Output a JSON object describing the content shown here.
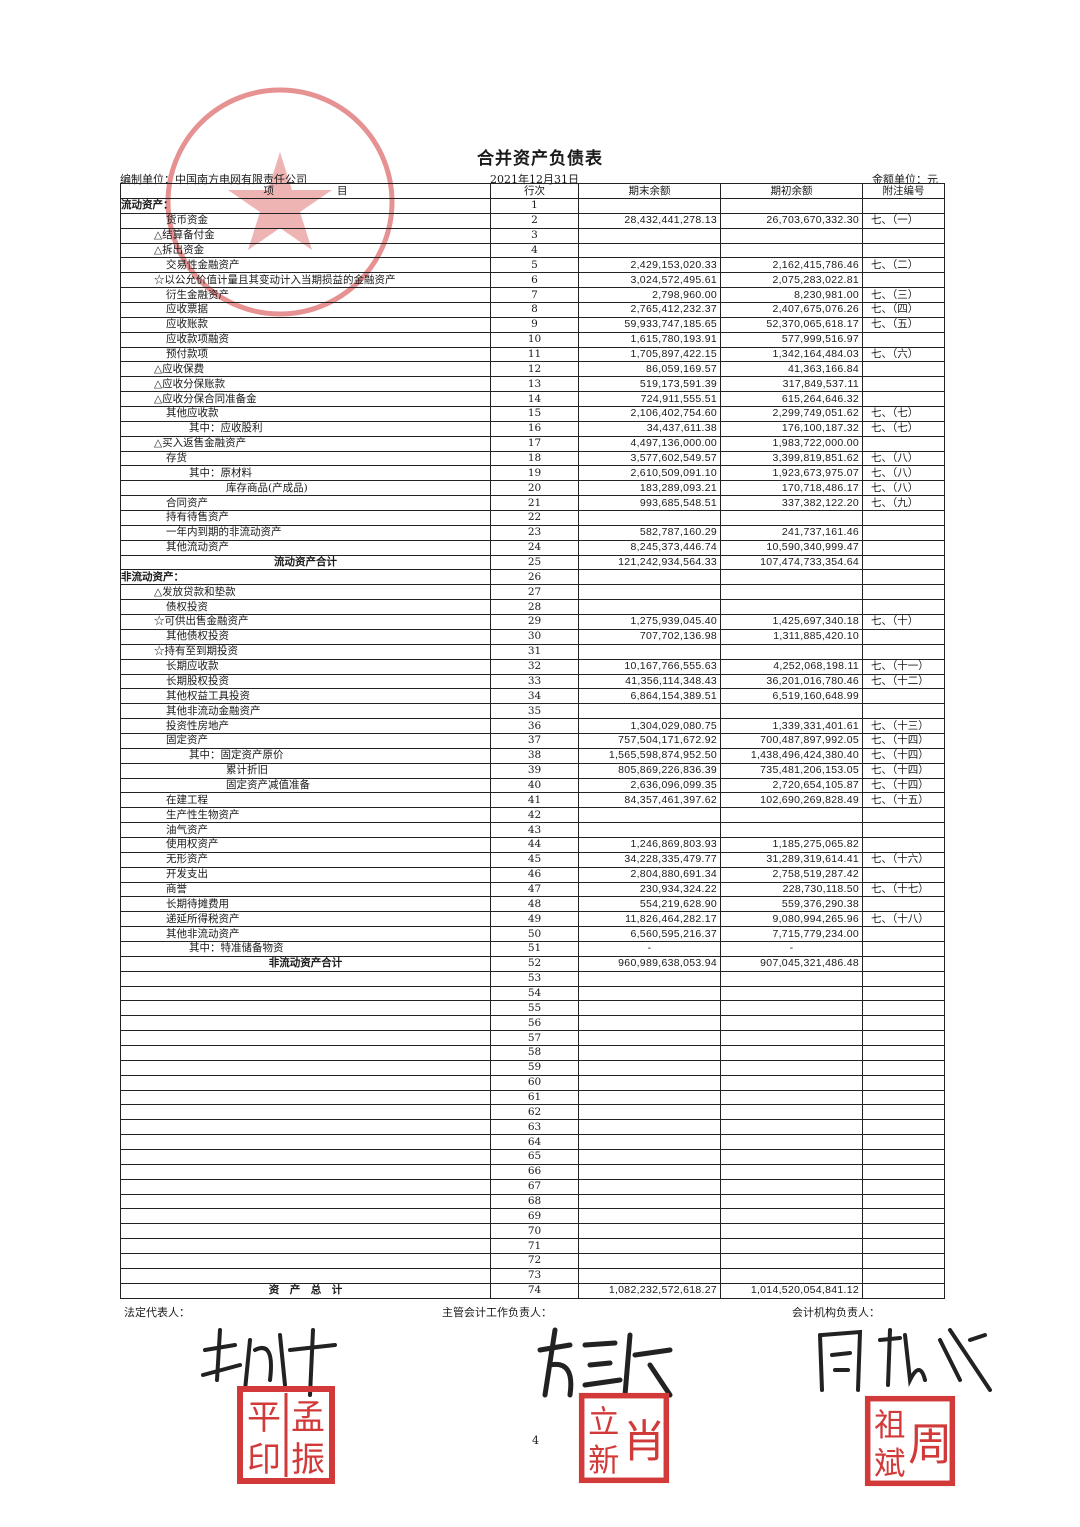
{
  "document": {
    "title": "合并资产负债表",
    "preparer": "编制单位：中国南方电网有限责任公司",
    "date": "2021年12月31日",
    "unit": "金额单位：元",
    "page_number": "4"
  },
  "table": {
    "headers": [
      "项　　　　　　目",
      "行次",
      "期末余额",
      "期初余额",
      "附注编号"
    ],
    "rows": [
      {
        "label": "流动资产：",
        "line": "1",
        "end": "",
        "begin": "",
        "note": "",
        "level": 0
      },
      {
        "label": "货币资金",
        "line": "2",
        "end": "28,432,441,278.13",
        "begin": "26,703,670,332.30",
        "note": "七、（一）",
        "level": 2
      },
      {
        "label": "△结算备付金",
        "line": "3",
        "end": "",
        "begin": "",
        "note": "",
        "level": 1
      },
      {
        "label": "△拆出资金",
        "line": "4",
        "end": "",
        "begin": "",
        "note": "",
        "level": 1
      },
      {
        "label": "交易性金融资产",
        "line": "5",
        "end": "2,429,153,020.33",
        "begin": "2,162,415,786.46",
        "note": "七、（二）",
        "level": 2
      },
      {
        "label": "☆以公允价值计量且其变动计入当期损益的金融资产",
        "line": "6",
        "end": "3,024,572,495.61",
        "begin": "2,075,283,022.81",
        "note": "",
        "level": 1
      },
      {
        "label": "衍生金融资产",
        "line": "7",
        "end": "2,798,960.00",
        "begin": "8,230,981.00",
        "note": "七、（三）",
        "level": 2
      },
      {
        "label": "应收票据",
        "line": "8",
        "end": "2,765,412,232.37",
        "begin": "2,407,675,076.26",
        "note": "七、（四）",
        "level": 2
      },
      {
        "label": "应收账款",
        "line": "9",
        "end": "59,933,747,185.65",
        "begin": "52,370,065,618.17",
        "note": "七、（五）",
        "level": 2
      },
      {
        "label": "应收款项融资",
        "line": "10",
        "end": "1,615,780,193.91",
        "begin": "577,999,516.97",
        "note": "",
        "level": 2
      },
      {
        "label": "预付款项",
        "line": "11",
        "end": "1,705,897,422.15",
        "begin": "1,342,164,484.03",
        "note": "七、（六）",
        "level": 2
      },
      {
        "label": "△应收保费",
        "line": "12",
        "end": "86,059,169.57",
        "begin": "41,363,166.84",
        "note": "",
        "level": 1
      },
      {
        "label": "△应收分保账款",
        "line": "13",
        "end": "519,173,591.39",
        "begin": "317,849,537.11",
        "note": "",
        "level": 1
      },
      {
        "label": "△应收分保合同准备金",
        "line": "14",
        "end": "724,911,555.51",
        "begin": "615,264,646.32",
        "note": "",
        "level": 1
      },
      {
        "label": "其他应收款",
        "line": "15",
        "end": "2,106,402,754.60",
        "begin": "2,299,749,051.62",
        "note": "七、（七）",
        "level": 2
      },
      {
        "label": "其中：应收股利",
        "line": "16",
        "end": "34,437,611.38",
        "begin": "176,100,187.32",
        "note": "七、（七）",
        "level": 3
      },
      {
        "label": "△买入返售金融资产",
        "line": "17",
        "end": "4,497,136,000.00",
        "begin": "1,983,722,000.00",
        "note": "",
        "level": 1
      },
      {
        "label": "存货",
        "line": "18",
        "end": "3,577,602,549.57",
        "begin": "3,399,819,851.62",
        "note": "七、（八）",
        "level": 2
      },
      {
        "label": "其中：原材料",
        "line": "19",
        "end": "2,610,509,091.10",
        "begin": "1,923,673,975.07",
        "note": "七、（八）",
        "level": 3
      },
      {
        "label": "库存商品(产成品)",
        "line": "20",
        "end": "183,289,093.21",
        "begin": "170,718,486.17",
        "note": "七、（八）",
        "level": 4
      },
      {
        "label": "合同资产",
        "line": "21",
        "end": "993,685,548.51",
        "begin": "337,382,122.20",
        "note": "七、（九）",
        "level": 2
      },
      {
        "label": "持有待售资产",
        "line": "22",
        "end": "",
        "begin": "",
        "note": "",
        "level": 2
      },
      {
        "label": "一年内到期的非流动资产",
        "line": "23",
        "end": "582,787,160.29",
        "begin": "241,737,161.46",
        "note": "",
        "level": 2
      },
      {
        "label": "其他流动资产",
        "line": "24",
        "end": "8,245,373,446.74",
        "begin": "10,590,340,999.47",
        "note": "",
        "level": 2
      },
      {
        "label": "流动资产合计",
        "line": "25",
        "end": "121,242,934,564.33",
        "begin": "107,474,733,354.64",
        "note": "",
        "level": 9
      },
      {
        "label": "非流动资产：",
        "line": "26",
        "end": "",
        "begin": "",
        "note": "",
        "level": 0
      },
      {
        "label": "△发放贷款和垫款",
        "line": "27",
        "end": "",
        "begin": "",
        "note": "",
        "level": 1
      },
      {
        "label": "债权投资",
        "line": "28",
        "end": "",
        "begin": "",
        "note": "",
        "level": 2
      },
      {
        "label": "☆可供出售金融资产",
        "line": "29",
        "end": "1,275,939,045.40",
        "begin": "1,425,697,340.18",
        "note": "七、（十）",
        "level": 1
      },
      {
        "label": "其他债权投资",
        "line": "30",
        "end": "707,702,136.98",
        "begin": "1,311,885,420.10",
        "note": "",
        "level": 2
      },
      {
        "label": "☆持有至到期投资",
        "line": "31",
        "end": "",
        "begin": "",
        "note": "",
        "level": 1
      },
      {
        "label": "长期应收款",
        "line": "32",
        "end": "10,167,766,555.63",
        "begin": "4,252,068,198.11",
        "note": "七、（十一）",
        "level": 2
      },
      {
        "label": "长期股权投资",
        "line": "33",
        "end": "41,356,114,348.43",
        "begin": "36,201,016,780.46",
        "note": "七、（十二）",
        "level": 2
      },
      {
        "label": "其他权益工具投资",
        "line": "34",
        "end": "6,864,154,389.51",
        "begin": "6,519,160,648.99",
        "note": "",
        "level": 2
      },
      {
        "label": "其他非流动金融资产",
        "line": "35",
        "end": "",
        "begin": "",
        "note": "",
        "level": 2
      },
      {
        "label": "投资性房地产",
        "line": "36",
        "end": "1,304,029,080.75",
        "begin": "1,339,331,401.61",
        "note": "七、（十三）",
        "level": 2
      },
      {
        "label": "固定资产",
        "line": "37",
        "end": "757,504,171,672.92",
        "begin": "700,487,897,992.05",
        "note": "七、（十四）",
        "level": 2
      },
      {
        "label": "其中：固定资产原价",
        "line": "38",
        "end": "1,565,598,874,952.50",
        "begin": "1,438,496,424,380.40",
        "note": "七、（十四）",
        "level": 3
      },
      {
        "label": "累计折旧",
        "line": "39",
        "end": "805,869,226,836.39",
        "begin": "735,481,206,153.05",
        "note": "七、（十四）",
        "level": 4
      },
      {
        "label": "固定资产减值准备",
        "line": "40",
        "end": "2,636,096,099.35",
        "begin": "2,720,654,105.87",
        "note": "七、（十四）",
        "level": 4
      },
      {
        "label": "在建工程",
        "line": "41",
        "end": "84,357,461,397.62",
        "begin": "102,690,269,828.49",
        "note": "七、（十五）",
        "level": 2
      },
      {
        "label": "生产性生物资产",
        "line": "42",
        "end": "",
        "begin": "",
        "note": "",
        "level": 2
      },
      {
        "label": "油气资产",
        "line": "43",
        "end": "",
        "begin": "",
        "note": "",
        "level": 2
      },
      {
        "label": "使用权资产",
        "line": "44",
        "end": "1,246,869,803.93",
        "begin": "1,185,275,065.82",
        "note": "",
        "level": 2
      },
      {
        "label": "无形资产",
        "line": "45",
        "end": "34,228,335,479.77",
        "begin": "31,289,319,614.41",
        "note": "七、（十六）",
        "level": 2
      },
      {
        "label": "开发支出",
        "line": "46",
        "end": "2,804,880,691.34",
        "begin": "2,758,519,287.42",
        "note": "",
        "level": 2
      },
      {
        "label": "商誉",
        "line": "47",
        "end": "230,934,324.22",
        "begin": "228,730,118.50",
        "note": "七、（十七）",
        "level": 2
      },
      {
        "label": "长期待摊费用",
        "line": "48",
        "end": "554,219,628.90",
        "begin": "559,376,290.38",
        "note": "",
        "level": 2
      },
      {
        "label": "递延所得税资产",
        "line": "49",
        "end": "11,826,464,282.17",
        "begin": "9,080,994,265.96",
        "note": "七、（十八）",
        "level": 2
      },
      {
        "label": "其他非流动资产",
        "line": "50",
        "end": "6,560,595,216.37",
        "begin": "7,715,779,234.00",
        "note": "",
        "level": 2
      },
      {
        "label": "其中：特准储备物资",
        "line": "51",
        "end": "-",
        "begin": "-",
        "note": "",
        "level": 3
      },
      {
        "label": "非流动资产合计",
        "line": "52",
        "end": "960,989,638,053.94",
        "begin": "907,045,321,486.48",
        "note": "",
        "level": 9
      },
      {
        "label": "",
        "line": "53",
        "end": "",
        "begin": "",
        "note": "",
        "level": 2
      },
      {
        "label": "",
        "line": "54",
        "end": "",
        "begin": "",
        "note": "",
        "level": 2
      },
      {
        "label": "",
        "line": "55",
        "end": "",
        "begin": "",
        "note": "",
        "level": 2
      },
      {
        "label": "",
        "line": "56",
        "end": "",
        "begin": "",
        "note": "",
        "level": 2
      },
      {
        "label": "",
        "line": "57",
        "end": "",
        "begin": "",
        "note": "",
        "level": 2
      },
      {
        "label": "",
        "line": "58",
        "end": "",
        "begin": "",
        "note": "",
        "level": 2
      },
      {
        "label": "",
        "line": "59",
        "end": "",
        "begin": "",
        "note": "",
        "level": 2
      },
      {
        "label": "",
        "line": "60",
        "end": "",
        "begin": "",
        "note": "",
        "level": 2
      },
      {
        "label": "",
        "line": "61",
        "end": "",
        "begin": "",
        "note": "",
        "level": 2
      },
      {
        "label": "",
        "line": "62",
        "end": "",
        "begin": "",
        "note": "",
        "level": 2
      },
      {
        "label": "",
        "line": "63",
        "end": "",
        "begin": "",
        "note": "",
        "level": 2
      },
      {
        "label": "",
        "line": "64",
        "end": "",
        "begin": "",
        "note": "",
        "level": 2
      },
      {
        "label": "",
        "line": "65",
        "end": "",
        "begin": "",
        "note": "",
        "level": 2
      },
      {
        "label": "",
        "line": "66",
        "end": "",
        "begin": "",
        "note": "",
        "level": 2
      },
      {
        "label": "",
        "line": "67",
        "end": "",
        "begin": "",
        "note": "",
        "level": 2
      },
      {
        "label": "",
        "line": "68",
        "end": "",
        "begin": "",
        "note": "",
        "level": 2
      },
      {
        "label": "",
        "line": "69",
        "end": "",
        "begin": "",
        "note": "",
        "level": 2
      },
      {
        "label": "",
        "line": "70",
        "end": "",
        "begin": "",
        "note": "",
        "level": 2
      },
      {
        "label": "",
        "line": "71",
        "end": "",
        "begin": "",
        "note": "",
        "level": 2
      },
      {
        "label": "",
        "line": "72",
        "end": "",
        "begin": "",
        "note": "",
        "level": 2
      },
      {
        "label": "",
        "line": "73",
        "end": "",
        "begin": "",
        "note": "",
        "level": 2
      },
      {
        "label": "资　产　总　计",
        "line": "74",
        "end": "1,082,232,572,618.27",
        "begin": "1,014,520,054,841.12",
        "note": "",
        "level": 9
      }
    ]
  },
  "signatures": {
    "legal_rep_label": "法定代表人：",
    "accounting_head_label": "主管会计工作负责人：",
    "accounting_dept_label": "会计机构负责人：",
    "legal_rep_seal": "孟振平印",
    "accounting_head_seal": "肖立新",
    "accounting_dept_seal": "周祖斌",
    "company_stamp": "中国南方电网有限责任公司"
  },
  "colors": {
    "stamp_red": "#d23a3a",
    "ink": "#1a1a1a"
  }
}
